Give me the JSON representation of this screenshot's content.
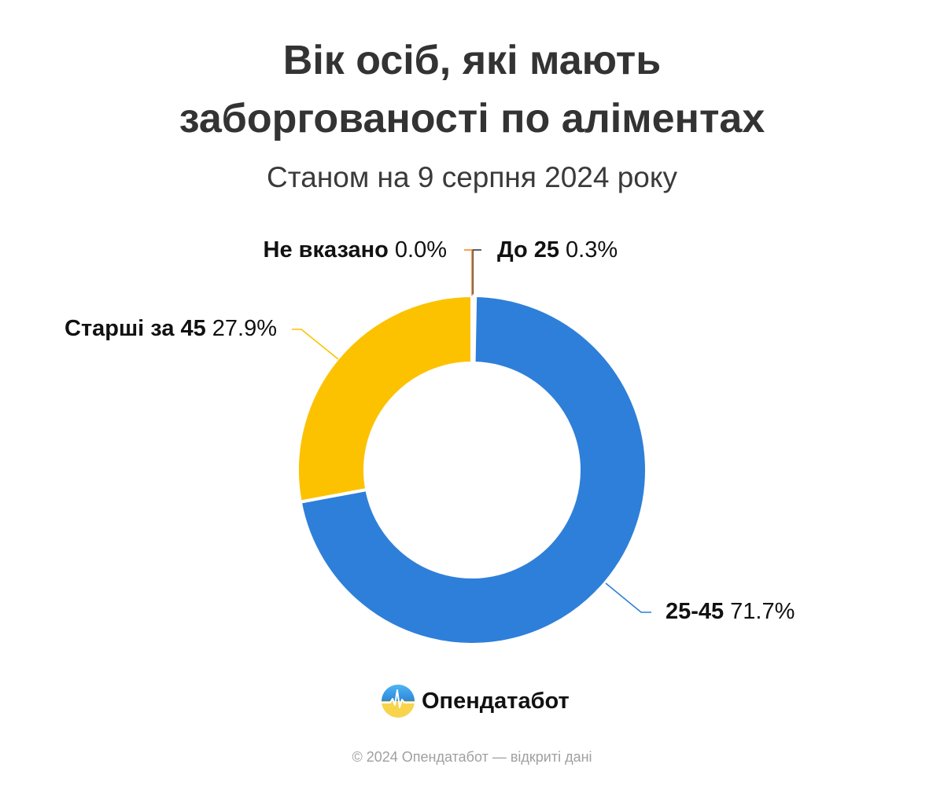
{
  "title_line1": "Вік осіб, які мають",
  "title_line2": "заборгованості по аліментах",
  "subtitle": "Станом на 9 серпня 2024 року",
  "chart_data": {
    "type": "pie",
    "style": "donut",
    "slices": [
      {
        "name": "До 25",
        "value": 0.3,
        "label": "0.3%",
        "color": "#1f2d3d"
      },
      {
        "name": "25-45",
        "value": 71.7,
        "label": "71.7%",
        "color": "#2e7fd9"
      },
      {
        "name": "Старші за 45",
        "value": 27.9,
        "label": "27.9%",
        "color": "#fcc200"
      },
      {
        "name": "Не вказано",
        "value": 0.0,
        "label": "0.0%",
        "color": "#f5821f"
      }
    ],
    "legend": "none"
  },
  "logo": {
    "text": "Опендатабот",
    "icon": "opendatabot-logo-icon"
  },
  "footer": "© 2024 Опендатабот — відкриті дані"
}
